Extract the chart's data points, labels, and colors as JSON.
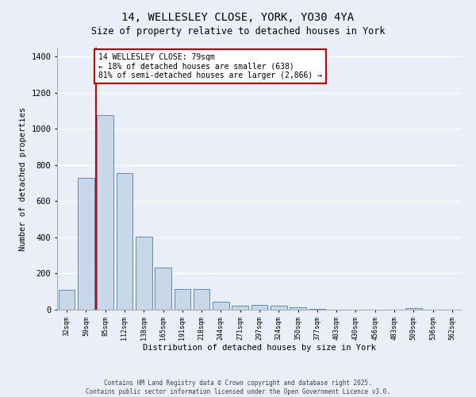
{
  "title": "14, WELLESLEY CLOSE, YORK, YO30 4YA",
  "subtitle": "Size of property relative to detached houses in York",
  "xlabel": "Distribution of detached houses by size in York",
  "ylabel": "Number of detached properties",
  "categories": [
    "32sqm",
    "59sqm",
    "85sqm",
    "112sqm",
    "138sqm",
    "165sqm",
    "191sqm",
    "218sqm",
    "244sqm",
    "271sqm",
    "297sqm",
    "324sqm",
    "350sqm",
    "377sqm",
    "403sqm",
    "430sqm",
    "456sqm",
    "483sqm",
    "509sqm",
    "536sqm",
    "562sqm"
  ],
  "values": [
    110,
    730,
    1075,
    755,
    405,
    235,
    115,
    115,
    45,
    20,
    25,
    20,
    15,
    5,
    0,
    0,
    0,
    0,
    10,
    0,
    0
  ],
  "bar_color": "#c8d8e8",
  "bar_edge_color": "#5b8db8",
  "red_line_x": 1.5,
  "annotation_text": "14 WELLESLEY CLOSE: 79sqm\n← 18% of detached houses are smaller (638)\n81% of semi-detached houses are larger (2,866) →",
  "annotation_box_color": "#ffffff",
  "annotation_box_edge": "#cc0000",
  "red_line_color": "#cc0000",
  "ylim": [
    0,
    1450
  ],
  "yticks": [
    0,
    200,
    400,
    600,
    800,
    1000,
    1200,
    1400
  ],
  "background_color": "#eaeff7",
  "grid_color": "#ffffff",
  "footer_line1": "Contains HM Land Registry data © Crown copyright and database right 2025.",
  "footer_line2": "Contains public sector information licensed under the Open Government Licence v3.0."
}
